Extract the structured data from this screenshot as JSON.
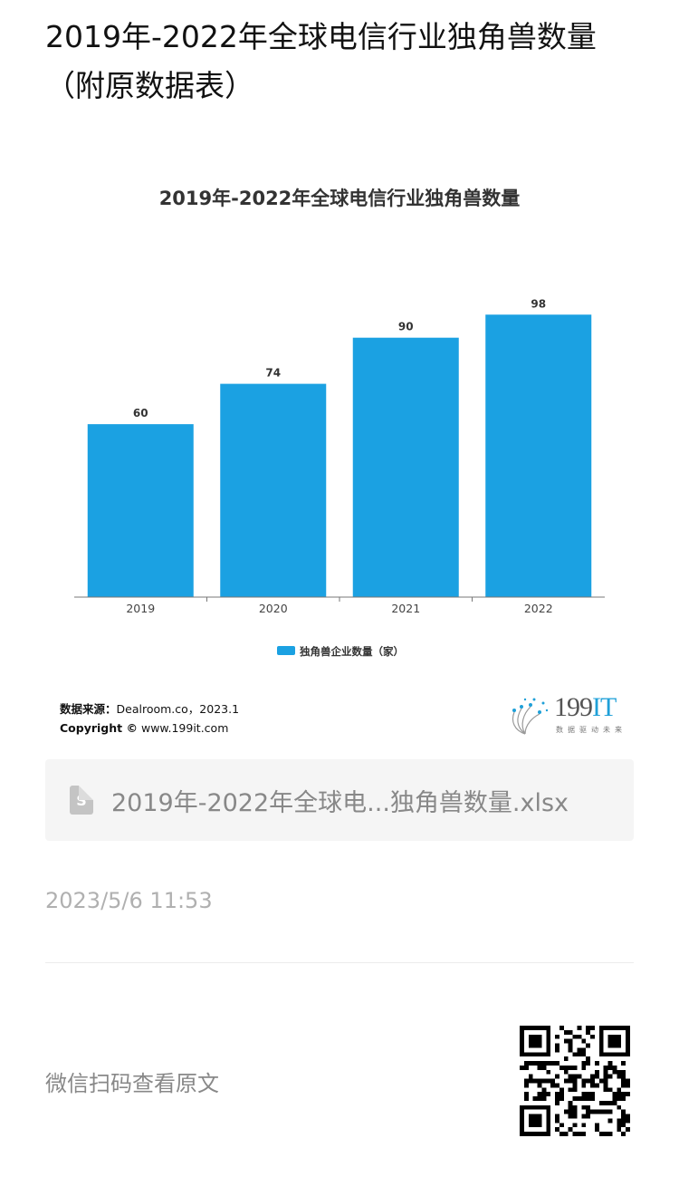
{
  "page": {
    "title": "2019年-2022年全球电信行业独角兽数量（附原数据表）"
  },
  "chart_data": {
    "type": "bar",
    "title": "2019年-2022年全球电信行业独角兽数量",
    "categories": [
      "2019",
      "2020",
      "2021",
      "2022"
    ],
    "series": [
      {
        "name": "独角兽企业数量（家）",
        "values": [
          60,
          74,
          90,
          98
        ],
        "color": "#1ba1e2"
      }
    ],
    "ylim": [
      0,
      116
    ],
    "grid": false,
    "legend": "bottom-center",
    "data_labels": true
  },
  "source": {
    "label": "数据来源：",
    "text": "Dealroom.co，2023.1",
    "copyright_label": "Copyright ©",
    "copyright_text": "www.199it.com"
  },
  "logo": {
    "number": "199",
    "it": "IT",
    "tagline": "数据驱动未来"
  },
  "file": {
    "icon": "spreadsheet-file-icon",
    "name": "2019年-2022年全球电...独角兽数量.xlsx"
  },
  "meta": {
    "timestamp": "2023/5/6 11:53",
    "scan_text": "微信扫码查看原文"
  }
}
